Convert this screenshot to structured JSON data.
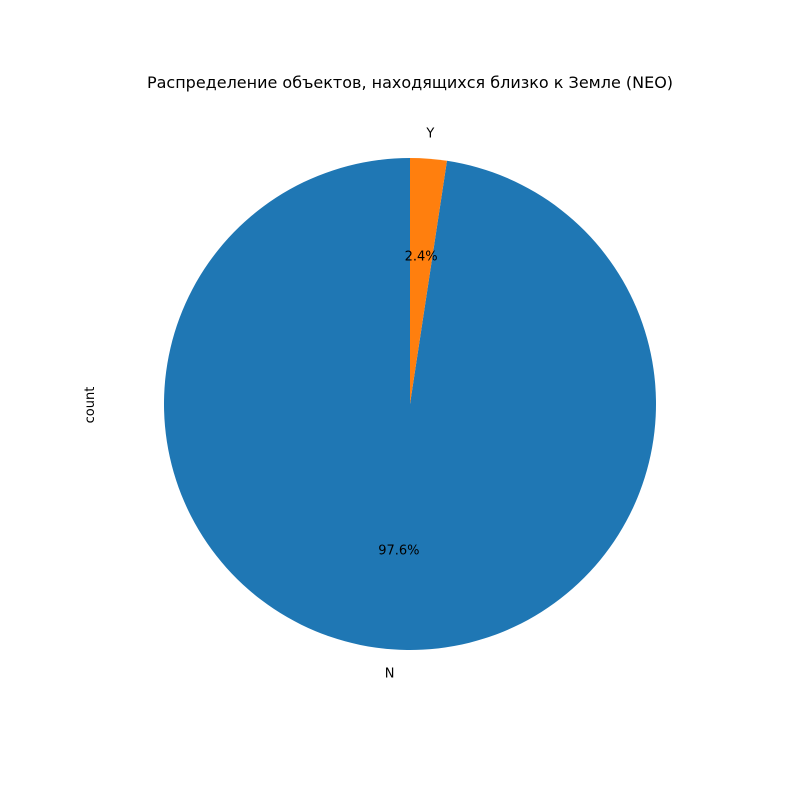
{
  "chart_data": {
    "type": "pie",
    "title": "Распределение объектов, находящихся близко к Земле (NEO)",
    "ylabel": "count",
    "start_angle_deg": 90,
    "direction": "counterclockwise",
    "slices": [
      {
        "label": "N",
        "percent": 97.6,
        "pct_label": "97.6%",
        "color": "#1f77b4"
      },
      {
        "label": "Y",
        "percent": 2.4,
        "pct_label": "2.4%",
        "color": "#ff7f0e"
      }
    ]
  }
}
